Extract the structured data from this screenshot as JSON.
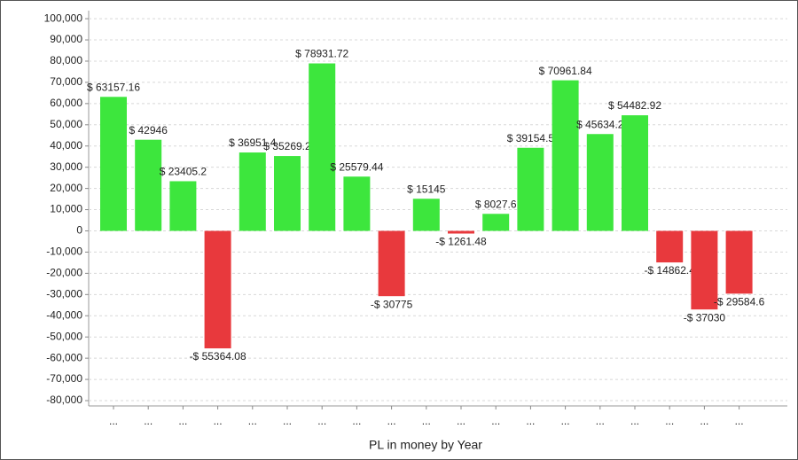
{
  "chart_data": {
    "type": "bar",
    "x_label": "PL in money by Year",
    "categories": [
      "...",
      "...",
      "...",
      "...",
      "...",
      "...",
      "...",
      "...",
      "...",
      "...",
      "...",
      "...",
      "...",
      "...",
      "...",
      "...",
      "...",
      "...",
      "..."
    ],
    "values": [
      63157.16,
      42946,
      23405.2,
      -55364.08,
      36951.4,
      35269.2,
      78931.72,
      25579.44,
      -30775,
      15145,
      -1261.48,
      8027.6,
      39154.5,
      70961.84,
      45634.2,
      54482.92,
      -14862.4,
      -37030,
      -29584.6
    ],
    "value_labels": [
      "$ 63157.16",
      "$ 42946",
      "$ 23405.2",
      "-$ 55364.08",
      "$ 36951.4",
      "$ 35269.2",
      "$ 78931.72",
      "$ 25579.44",
      "-$ 30775",
      "$ 15145",
      "-$ 1261.48",
      "$ 8027.6",
      "$ 39154.5",
      "$ 70961.84",
      "$ 45634.2",
      "$ 54482.92",
      "-$ 14862.4",
      "-$ 37030",
      "-$ 29584.6"
    ],
    "color": "#3de63d",
    "negative_color": "#e8393d",
    "ylim": [
      -82500,
      103800
    ],
    "yticks": [
      {
        "value": -80000,
        "label": "-80,000"
      },
      {
        "value": -70000,
        "label": "-70,000"
      },
      {
        "value": -60000,
        "label": "-60,000"
      },
      {
        "value": -50000,
        "label": "-50,000"
      },
      {
        "value": -40000,
        "label": "-40,000"
      },
      {
        "value": -30000,
        "label": "-30,000"
      },
      {
        "value": -20000,
        "label": "-20,000"
      },
      {
        "value": -10000,
        "label": "-10,000"
      },
      0,
      {
        "value": 10000,
        "label": "10,000"
      },
      {
        "value": 20000,
        "label": "20,000"
      },
      {
        "value": 30000,
        "label": "30,000"
      },
      {
        "value": 40000,
        "label": "40,000"
      },
      {
        "value": 50000,
        "label": "50,000"
      },
      {
        "value": 60000,
        "label": "60,000"
      },
      {
        "value": 70000,
        "label": "70,000"
      },
      {
        "value": 80000,
        "label": "80,000"
      },
      {
        "value": 90000,
        "label": "90,000"
      },
      {
        "value": 100000,
        "label": "100,000"
      }
    ],
    "grid": true
  }
}
